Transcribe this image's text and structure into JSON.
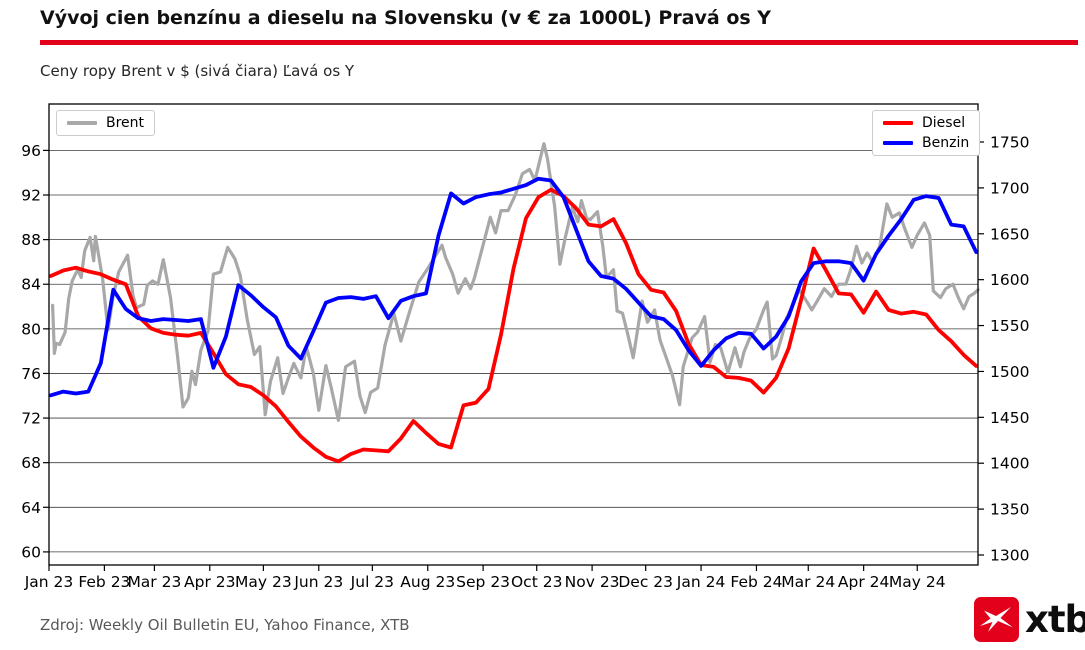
{
  "header": {
    "title": "Vývoj cien benzínu a dieselu na Slovensku (v € za 1000L) Pravá os Y",
    "subtitle": "Ceny ropy Brent v $ (sivá čiara) Ľavá os Y",
    "accent_color": "#e2001a"
  },
  "footer": {
    "source": "Zdroj: Weekly Oil Bulletin EU, Yahoo Finance, XTB",
    "logo_text": "xtb",
    "logo_color": "#e2001a"
  },
  "chart_data": {
    "type": "line",
    "title": "Vývoj cien benzínu a dieselu na Slovensku (v € za 1000L)",
    "grid": true,
    "legend_left": [
      "Brent"
    ],
    "legend_right": [
      "Diesel",
      "Benzin"
    ],
    "left_axis": {
      "ticks": [
        60,
        64,
        68,
        72,
        76,
        80,
        84,
        88,
        92,
        96
      ],
      "range": [
        58.7,
        100.1
      ]
    },
    "right_axis": {
      "ticks": [
        1300,
        1350,
        1400,
        1450,
        1500,
        1550,
        1600,
        1650,
        1700,
        1750
      ],
      "range": [
        1289,
        1791
      ]
    },
    "x_axis": {
      "tick_labels": [
        "Jan 23",
        "Feb 23",
        "Mar 23",
        "Apr 23",
        "May 23",
        "Jun 23",
        "Jul 23",
        "Aug 23",
        "Sep 23",
        "Oct 23",
        "Nov 23",
        "Dec 23",
        "Jan 24",
        "Feb 24",
        "Mar 24",
        "Apr 24",
        "May 24"
      ],
      "tick_days": [
        0,
        31,
        59,
        90,
        120,
        151,
        181,
        212,
        243,
        273,
        304,
        334,
        365,
        396,
        425,
        456,
        486
      ]
    },
    "series": [
      {
        "name": "Brent",
        "axis": "left",
        "color": "#a8a8a8",
        "width": 3.2,
        "points": [
          [
            2,
            82.1
          ],
          [
            3,
            77.8
          ],
          [
            4,
            78.7
          ],
          [
            6,
            78.6
          ],
          [
            9,
            79.7
          ],
          [
            11,
            82.7
          ],
          [
            13,
            84.3
          ],
          [
            16,
            85.3
          ],
          [
            18,
            84.6
          ],
          [
            20,
            87.0
          ],
          [
            23,
            88.2
          ],
          [
            25,
            86.1
          ],
          [
            26,
            88.3
          ],
          [
            30,
            84.5
          ],
          [
            33,
            79.9
          ],
          [
            36,
            83.0
          ],
          [
            39,
            85.1
          ],
          [
            44,
            86.6
          ],
          [
            47,
            83.0
          ],
          [
            49,
            81.9
          ],
          [
            53,
            82.2
          ],
          [
            55,
            83.9
          ],
          [
            58,
            84.3
          ],
          [
            61,
            84.0
          ],
          [
            64,
            86.2
          ],
          [
            68,
            82.8
          ],
          [
            72,
            77.5
          ],
          [
            75,
            73.0
          ],
          [
            78,
            73.8
          ],
          [
            80,
            76.2
          ],
          [
            82,
            75.0
          ],
          [
            85,
            78.1
          ],
          [
            89,
            79.8
          ],
          [
            92,
            84.9
          ],
          [
            96,
            85.1
          ],
          [
            100,
            87.3
          ],
          [
            104,
            86.3
          ],
          [
            107,
            84.8
          ],
          [
            111,
            80.8
          ],
          [
            115,
            77.7
          ],
          [
            118,
            78.4
          ],
          [
            121,
            72.3
          ],
          [
            124,
            75.3
          ],
          [
            128,
            77.4
          ],
          [
            131,
            74.2
          ],
          [
            134,
            75.6
          ],
          [
            137,
            76.9
          ],
          [
            141,
            75.6
          ],
          [
            144,
            78.4
          ],
          [
            148,
            76.0
          ],
          [
            151,
            72.7
          ],
          [
            155,
            76.7
          ],
          [
            158,
            74.7
          ],
          [
            162,
            71.8
          ],
          [
            166,
            76.6
          ],
          [
            171,
            77.1
          ],
          [
            174,
            74.0
          ],
          [
            177,
            72.5
          ],
          [
            180,
            74.3
          ],
          [
            184,
            74.7
          ],
          [
            188,
            78.5
          ],
          [
            193,
            81.4
          ],
          [
            197,
            78.9
          ],
          [
            201,
            81.1
          ],
          [
            207,
            84.2
          ],
          [
            212,
            85.4
          ],
          [
            215,
            86.2
          ],
          [
            220,
            87.5
          ],
          [
            222,
            86.4
          ],
          [
            226,
            84.9
          ],
          [
            229,
            83.2
          ],
          [
            233,
            84.5
          ],
          [
            236,
            83.6
          ],
          [
            238,
            84.5
          ],
          [
            242,
            86.9
          ],
          [
            247,
            90.0
          ],
          [
            250,
            88.6
          ],
          [
            253,
            90.6
          ],
          [
            257,
            90.6
          ],
          [
            261,
            92.0
          ],
          [
            265,
            93.9
          ],
          [
            269,
            94.3
          ],
          [
            272,
            93.3
          ],
          [
            277,
            96.6
          ],
          [
            279,
            95.3
          ],
          [
            283,
            91.0
          ],
          [
            286,
            85.8
          ],
          [
            289,
            88.2
          ],
          [
            293,
            90.9
          ],
          [
            296,
            89.6
          ],
          [
            298,
            91.5
          ],
          [
            301,
            89.9
          ],
          [
            303,
            89.8
          ],
          [
            307,
            90.5
          ],
          [
            310,
            87.4
          ],
          [
            312,
            84.6
          ],
          [
            316,
            85.3
          ],
          [
            318,
            81.6
          ],
          [
            321,
            81.4
          ],
          [
            324,
            79.5
          ],
          [
            327,
            77.4
          ],
          [
            332,
            82.5
          ],
          [
            335,
            80.6
          ],
          [
            339,
            81.7
          ],
          [
            342,
            79.0
          ],
          [
            346,
            77.2
          ],
          [
            349,
            75.8
          ],
          [
            353,
            73.2
          ],
          [
            355,
            76.6
          ],
          [
            360,
            79.2
          ],
          [
            363,
            79.7
          ],
          [
            367,
            81.1
          ],
          [
            370,
            77.0
          ],
          [
            373,
            78.6
          ],
          [
            376,
            78.3
          ],
          [
            380,
            76.1
          ],
          [
            384,
            78.3
          ],
          [
            387,
            76.6
          ],
          [
            389,
            77.9
          ],
          [
            392,
            79.1
          ],
          [
            396,
            80.0
          ],
          [
            400,
            81.7
          ],
          [
            402,
            82.4
          ],
          [
            405,
            77.3
          ],
          [
            407,
            77.6
          ],
          [
            410,
            79.2
          ],
          [
            413,
            81.0
          ],
          [
            416,
            82.0
          ],
          [
            420,
            83.5
          ],
          [
            424,
            82.5
          ],
          [
            427,
            81.7
          ],
          [
            430,
            82.5
          ],
          [
            434,
            83.6
          ],
          [
            438,
            82.9
          ],
          [
            442,
            84.0
          ],
          [
            446,
            84.0
          ],
          [
            449,
            85.4
          ],
          [
            452,
            87.4
          ],
          [
            455,
            85.9
          ],
          [
            458,
            86.8
          ],
          [
            461,
            86.0
          ],
          [
            465,
            87.4
          ],
          [
            469,
            91.2
          ],
          [
            472,
            90.0
          ],
          [
            476,
            90.4
          ],
          [
            479,
            89.0
          ],
          [
            483,
            87.3
          ],
          [
            486,
            88.4
          ],
          [
            490,
            89.5
          ],
          [
            493,
            88.4
          ],
          [
            495,
            83.4
          ],
          [
            499,
            82.8
          ],
          [
            502,
            83.6
          ],
          [
            506,
            84.0
          ],
          [
            509,
            82.8
          ],
          [
            512,
            81.8
          ],
          [
            515,
            82.9
          ],
          [
            518,
            83.2
          ],
          [
            520,
            83.5
          ]
        ]
      },
      {
        "name": "Diesel",
        "axis": "right",
        "color": "#ff0000",
        "width": 3.8,
        "start_day": 1,
        "step_days": 7,
        "values": [
          1604,
          1610,
          1613,
          1609,
          1606,
          1600,
          1595,
          1560,
          1547,
          1542,
          1540,
          1539,
          1542,
          1520,
          1497,
          1486,
          1483,
          1474,
          1462,
          1445,
          1429,
          1417,
          1407,
          1402,
          1410,
          1415,
          1414,
          1413,
          1427,
          1446,
          1433,
          1421,
          1417,
          1463,
          1466,
          1481,
          1540,
          1612,
          1667,
          1690,
          1698,
          1691,
          1678,
          1660,
          1658,
          1666,
          1640,
          1606,
          1589,
          1586,
          1566,
          1530,
          1507,
          1505,
          1494,
          1493,
          1490,
          1477,
          1493,
          1525,
          1578,
          1634,
          1610,
          1585,
          1584,
          1564,
          1587,
          1567,
          1563,
          1565,
          1562,
          1545,
          1533,
          1518,
          1506
        ]
      },
      {
        "name": "Benzin",
        "axis": "right",
        "color": "#0000ff",
        "width": 3.8,
        "start_day": 1,
        "step_days": 7,
        "values": [
          1474,
          1478,
          1476,
          1478,
          1509,
          1589,
          1568,
          1558,
          1555,
          1557,
          1556,
          1555,
          1557,
          1504,
          1538,
          1594,
          1583,
          1570,
          1559,
          1528,
          1514,
          1544,
          1575,
          1580,
          1581,
          1579,
          1582,
          1558,
          1577,
          1582,
          1585,
          1648,
          1694,
          1683,
          1690,
          1693,
          1695,
          1699,
          1703,
          1710,
          1708,
          1690,
          1655,
          1620,
          1604,
          1601,
          1590,
          1575,
          1560,
          1557,
          1545,
          1523,
          1506,
          1523,
          1536,
          1542,
          1541,
          1525,
          1538,
          1560,
          1598,
          1618,
          1620,
          1620,
          1618,
          1599,
          1628,
          1648,
          1666,
          1687,
          1691,
          1689,
          1660,
          1658,
          1630
        ]
      }
    ]
  }
}
